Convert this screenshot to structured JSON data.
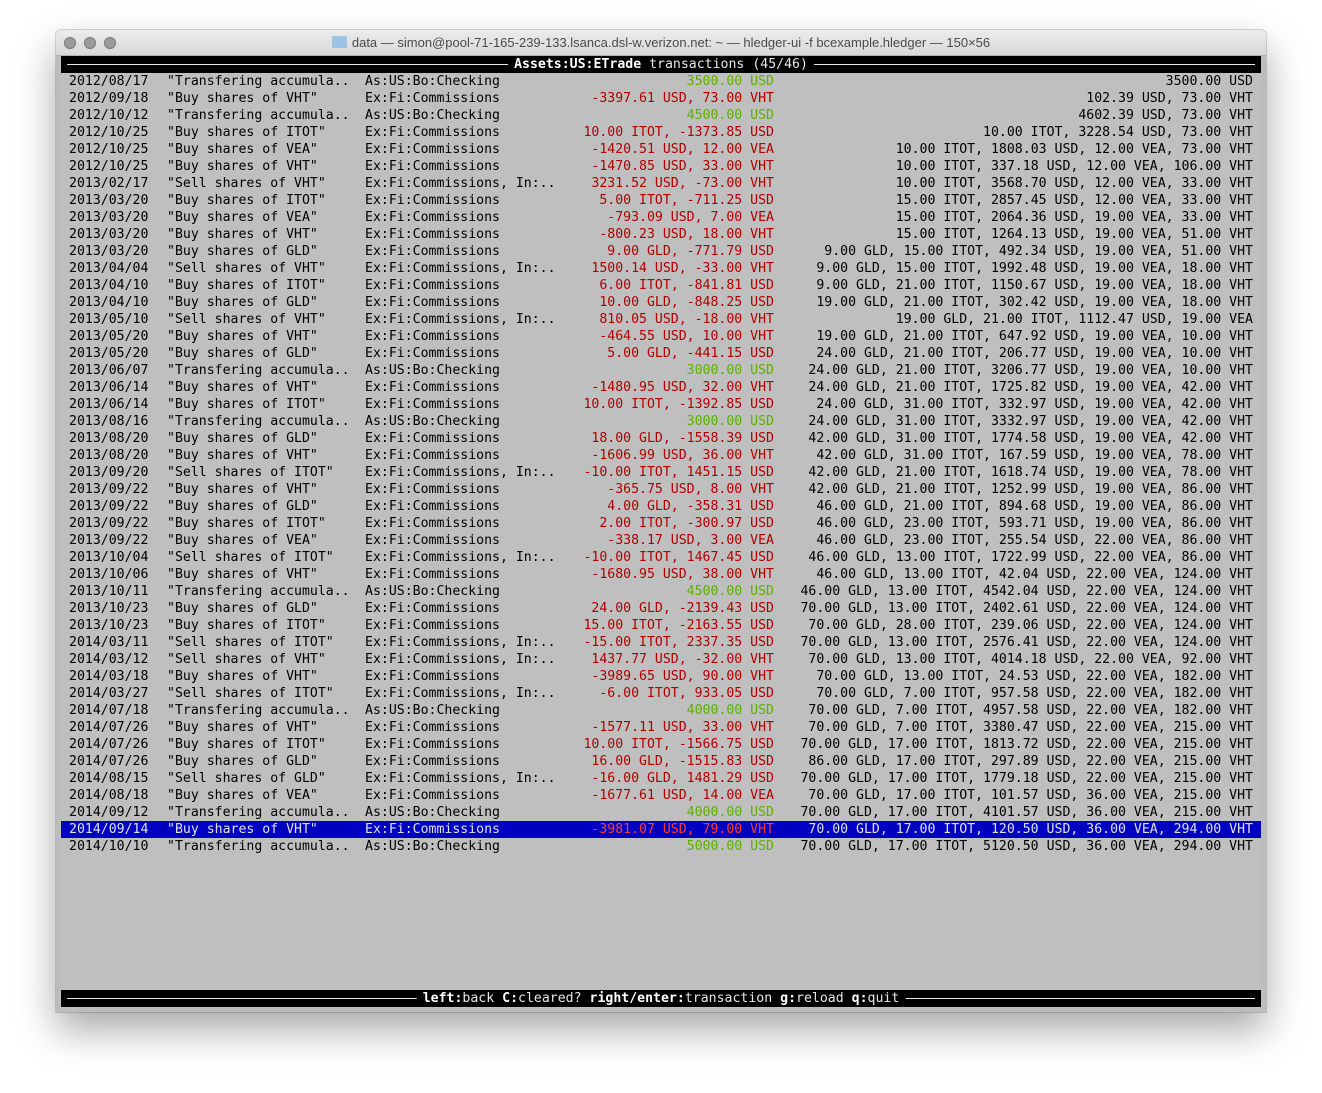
{
  "window": {
    "title": "data — simon@pool-71-165-239-133.lsanca.dsl-w.verizon.net: ~ — hledger-ui -f bcexample.hledger — 150×56",
    "folder_icon": "folder-icon"
  },
  "header": {
    "account": "Assets:US:ETrade",
    "label": "transactions (45/46)"
  },
  "colors": {
    "positive": "#5fb000",
    "negative": "#b00000",
    "selected_bg": "#0000c0",
    "background": "#bfbfbf"
  },
  "selected_index": 44,
  "rows": [
    {
      "date": "2012/08/17",
      "desc": "\"Transfering accumula..",
      "account": "As:US:Bo:Checking",
      "change": "3500.00 USD",
      "balance": "3500.00 USD"
    },
    {
      "date": "2012/09/18",
      "desc": "\"Buy shares of VHT\"",
      "account": "Ex:Fi:Commissions",
      "change": "-3397.61 USD, 73.00 VHT",
      "balance": "102.39 USD, 73.00 VHT"
    },
    {
      "date": "2012/10/12",
      "desc": "\"Transfering accumula..",
      "account": "As:US:Bo:Checking",
      "change": "4500.00 USD",
      "balance": "4602.39 USD, 73.00 VHT"
    },
    {
      "date": "2012/10/25",
      "desc": "\"Buy shares of ITOT\"",
      "account": "Ex:Fi:Commissions",
      "change": "10.00 ITOT, -1373.85 USD",
      "balance": "10.00 ITOT, 3228.54 USD, 73.00 VHT"
    },
    {
      "date": "2012/10/25",
      "desc": "\"Buy shares of VEA\"",
      "account": "Ex:Fi:Commissions",
      "change": "-1420.51 USD, 12.00 VEA",
      "balance": "10.00 ITOT, 1808.03 USD, 12.00 VEA, 73.00 VHT"
    },
    {
      "date": "2012/10/25",
      "desc": "\"Buy shares of VHT\"",
      "account": "Ex:Fi:Commissions",
      "change": "-1470.85 USD, 33.00 VHT",
      "balance": "10.00 ITOT, 337.18 USD, 12.00 VEA, 106.00 VHT"
    },
    {
      "date": "2013/02/17",
      "desc": "\"Sell shares of VHT\"",
      "account": "Ex:Fi:Commissions, In:..",
      "change": "3231.52 USD, -73.00 VHT",
      "balance": "10.00 ITOT, 3568.70 USD, 12.00 VEA, 33.00 VHT"
    },
    {
      "date": "2013/03/20",
      "desc": "\"Buy shares of ITOT\"",
      "account": "Ex:Fi:Commissions",
      "change": "5.00 ITOT, -711.25 USD",
      "balance": "15.00 ITOT, 2857.45 USD, 12.00 VEA, 33.00 VHT"
    },
    {
      "date": "2013/03/20",
      "desc": "\"Buy shares of VEA\"",
      "account": "Ex:Fi:Commissions",
      "change": "-793.09 USD, 7.00 VEA",
      "balance": "15.00 ITOT, 2064.36 USD, 19.00 VEA, 33.00 VHT"
    },
    {
      "date": "2013/03/20",
      "desc": "\"Buy shares of VHT\"",
      "account": "Ex:Fi:Commissions",
      "change": "-800.23 USD, 18.00 VHT",
      "balance": "15.00 ITOT, 1264.13 USD, 19.00 VEA, 51.00 VHT"
    },
    {
      "date": "2013/03/20",
      "desc": "\"Buy shares of GLD\"",
      "account": "Ex:Fi:Commissions",
      "change": "9.00 GLD, -771.79 USD",
      "balance": "9.00 GLD, 15.00 ITOT, 492.34 USD, 19.00 VEA, 51.00 VHT"
    },
    {
      "date": "2013/04/04",
      "desc": "\"Sell shares of VHT\"",
      "account": "Ex:Fi:Commissions, In:..",
      "change": "1500.14 USD, -33.00 VHT",
      "balance": "9.00 GLD, 15.00 ITOT, 1992.48 USD, 19.00 VEA, 18.00 VHT"
    },
    {
      "date": "2013/04/10",
      "desc": "\"Buy shares of ITOT\"",
      "account": "Ex:Fi:Commissions",
      "change": "6.00 ITOT, -841.81 USD",
      "balance": "9.00 GLD, 21.00 ITOT, 1150.67 USD, 19.00 VEA, 18.00 VHT"
    },
    {
      "date": "2013/04/10",
      "desc": "\"Buy shares of GLD\"",
      "account": "Ex:Fi:Commissions",
      "change": "10.00 GLD, -848.25 USD",
      "balance": "19.00 GLD, 21.00 ITOT, 302.42 USD, 19.00 VEA, 18.00 VHT"
    },
    {
      "date": "2013/05/10",
      "desc": "\"Sell shares of VHT\"",
      "account": "Ex:Fi:Commissions, In:..",
      "change": "810.05 USD, -18.00 VHT",
      "balance": "19.00 GLD, 21.00 ITOT, 1112.47 USD, 19.00 VEA"
    },
    {
      "date": "2013/05/20",
      "desc": "\"Buy shares of VHT\"",
      "account": "Ex:Fi:Commissions",
      "change": "-464.55 USD, 10.00 VHT",
      "balance": "19.00 GLD, 21.00 ITOT, 647.92 USD, 19.00 VEA, 10.00 VHT"
    },
    {
      "date": "2013/05/20",
      "desc": "\"Buy shares of GLD\"",
      "account": "Ex:Fi:Commissions",
      "change": "5.00 GLD, -441.15 USD",
      "balance": "24.00 GLD, 21.00 ITOT, 206.77 USD, 19.00 VEA, 10.00 VHT"
    },
    {
      "date": "2013/06/07",
      "desc": "\"Transfering accumula..",
      "account": "As:US:Bo:Checking",
      "change": "3000.00 USD",
      "balance": "24.00 GLD, 21.00 ITOT, 3206.77 USD, 19.00 VEA, 10.00 VHT"
    },
    {
      "date": "2013/06/14",
      "desc": "\"Buy shares of VHT\"",
      "account": "Ex:Fi:Commissions",
      "change": "-1480.95 USD, 32.00 VHT",
      "balance": "24.00 GLD, 21.00 ITOT, 1725.82 USD, 19.00 VEA, 42.00 VHT"
    },
    {
      "date": "2013/06/14",
      "desc": "\"Buy shares of ITOT\"",
      "account": "Ex:Fi:Commissions",
      "change": "10.00 ITOT, -1392.85 USD",
      "balance": "24.00 GLD, 31.00 ITOT, 332.97 USD, 19.00 VEA, 42.00 VHT"
    },
    {
      "date": "2013/08/16",
      "desc": "\"Transfering accumula..",
      "account": "As:US:Bo:Checking",
      "change": "3000.00 USD",
      "balance": "24.00 GLD, 31.00 ITOT, 3332.97 USD, 19.00 VEA, 42.00 VHT"
    },
    {
      "date": "2013/08/20",
      "desc": "\"Buy shares of GLD\"",
      "account": "Ex:Fi:Commissions",
      "change": "18.00 GLD, -1558.39 USD",
      "balance": "42.00 GLD, 31.00 ITOT, 1774.58 USD, 19.00 VEA, 42.00 VHT"
    },
    {
      "date": "2013/08/20",
      "desc": "\"Buy shares of VHT\"",
      "account": "Ex:Fi:Commissions",
      "change": "-1606.99 USD, 36.00 VHT",
      "balance": "42.00 GLD, 31.00 ITOT, 167.59 USD, 19.00 VEA, 78.00 VHT"
    },
    {
      "date": "2013/09/20",
      "desc": "\"Sell shares of ITOT\"",
      "account": "Ex:Fi:Commissions, In:..",
      "change": "-10.00 ITOT, 1451.15 USD",
      "balance": "42.00 GLD, 21.00 ITOT, 1618.74 USD, 19.00 VEA, 78.00 VHT"
    },
    {
      "date": "2013/09/22",
      "desc": "\"Buy shares of VHT\"",
      "account": "Ex:Fi:Commissions",
      "change": "-365.75 USD, 8.00 VHT",
      "balance": "42.00 GLD, 21.00 ITOT, 1252.99 USD, 19.00 VEA, 86.00 VHT"
    },
    {
      "date": "2013/09/22",
      "desc": "\"Buy shares of GLD\"",
      "account": "Ex:Fi:Commissions",
      "change": "4.00 GLD, -358.31 USD",
      "balance": "46.00 GLD, 21.00 ITOT, 894.68 USD, 19.00 VEA, 86.00 VHT"
    },
    {
      "date": "2013/09/22",
      "desc": "\"Buy shares of ITOT\"",
      "account": "Ex:Fi:Commissions",
      "change": "2.00 ITOT, -300.97 USD",
      "balance": "46.00 GLD, 23.00 ITOT, 593.71 USD, 19.00 VEA, 86.00 VHT"
    },
    {
      "date": "2013/09/22",
      "desc": "\"Buy shares of VEA\"",
      "account": "Ex:Fi:Commissions",
      "change": "-338.17 USD, 3.00 VEA",
      "balance": "46.00 GLD, 23.00 ITOT, 255.54 USD, 22.00 VEA, 86.00 VHT"
    },
    {
      "date": "2013/10/04",
      "desc": "\"Sell shares of ITOT\"",
      "account": "Ex:Fi:Commissions, In:..",
      "change": "-10.00 ITOT, 1467.45 USD",
      "balance": "46.00 GLD, 13.00 ITOT, 1722.99 USD, 22.00 VEA, 86.00 VHT"
    },
    {
      "date": "2013/10/06",
      "desc": "\"Buy shares of VHT\"",
      "account": "Ex:Fi:Commissions",
      "change": "-1680.95 USD, 38.00 VHT",
      "balance": "46.00 GLD, 13.00 ITOT, 42.04 USD, 22.00 VEA, 124.00 VHT"
    },
    {
      "date": "2013/10/11",
      "desc": "\"Transfering accumula..",
      "account": "As:US:Bo:Checking",
      "change": "4500.00 USD",
      "balance": "46.00 GLD, 13.00 ITOT, 4542.04 USD, 22.00 VEA, 124.00 VHT"
    },
    {
      "date": "2013/10/23",
      "desc": "\"Buy shares of GLD\"",
      "account": "Ex:Fi:Commissions",
      "change": "24.00 GLD, -2139.43 USD",
      "balance": "70.00 GLD, 13.00 ITOT, 2402.61 USD, 22.00 VEA, 124.00 VHT"
    },
    {
      "date": "2013/10/23",
      "desc": "\"Buy shares of ITOT\"",
      "account": "Ex:Fi:Commissions",
      "change": "15.00 ITOT, -2163.55 USD",
      "balance": "70.00 GLD, 28.00 ITOT, 239.06 USD, 22.00 VEA, 124.00 VHT"
    },
    {
      "date": "2014/03/11",
      "desc": "\"Sell shares of ITOT\"",
      "account": "Ex:Fi:Commissions, In:..",
      "change": "-15.00 ITOT, 2337.35 USD",
      "balance": "70.00 GLD, 13.00 ITOT, 2576.41 USD, 22.00 VEA, 124.00 VHT"
    },
    {
      "date": "2014/03/12",
      "desc": "\"Sell shares of VHT\"",
      "account": "Ex:Fi:Commissions, In:..",
      "change": "1437.77 USD, -32.00 VHT",
      "balance": "70.00 GLD, 13.00 ITOT, 4014.18 USD, 22.00 VEA, 92.00 VHT"
    },
    {
      "date": "2014/03/18",
      "desc": "\"Buy shares of VHT\"",
      "account": "Ex:Fi:Commissions",
      "change": "-3989.65 USD, 90.00 VHT",
      "balance": "70.00 GLD, 13.00 ITOT, 24.53 USD, 22.00 VEA, 182.00 VHT"
    },
    {
      "date": "2014/03/27",
      "desc": "\"Sell shares of ITOT\"",
      "account": "Ex:Fi:Commissions, In:..",
      "change": "-6.00 ITOT, 933.05 USD",
      "balance": "70.00 GLD, 7.00 ITOT, 957.58 USD, 22.00 VEA, 182.00 VHT"
    },
    {
      "date": "2014/07/18",
      "desc": "\"Transfering accumula..",
      "account": "As:US:Bo:Checking",
      "change": "4000.00 USD",
      "balance": "70.00 GLD, 7.00 ITOT, 4957.58 USD, 22.00 VEA, 182.00 VHT"
    },
    {
      "date": "2014/07/26",
      "desc": "\"Buy shares of VHT\"",
      "account": "Ex:Fi:Commissions",
      "change": "-1577.11 USD, 33.00 VHT",
      "balance": "70.00 GLD, 7.00 ITOT, 3380.47 USD, 22.00 VEA, 215.00 VHT"
    },
    {
      "date": "2014/07/26",
      "desc": "\"Buy shares of ITOT\"",
      "account": "Ex:Fi:Commissions",
      "change": "10.00 ITOT, -1566.75 USD",
      "balance": "70.00 GLD, 17.00 ITOT, 1813.72 USD, 22.00 VEA, 215.00 VHT"
    },
    {
      "date": "2014/07/26",
      "desc": "\"Buy shares of GLD\"",
      "account": "Ex:Fi:Commissions",
      "change": "16.00 GLD, -1515.83 USD",
      "balance": "86.00 GLD, 17.00 ITOT, 297.89 USD, 22.00 VEA, 215.00 VHT"
    },
    {
      "date": "2014/08/15",
      "desc": "\"Sell shares of GLD\"",
      "account": "Ex:Fi:Commissions, In:..",
      "change": "-16.00 GLD, 1481.29 USD",
      "balance": "70.00 GLD, 17.00 ITOT, 1779.18 USD, 22.00 VEA, 215.00 VHT"
    },
    {
      "date": "2014/08/18",
      "desc": "\"Buy shares of VEA\"",
      "account": "Ex:Fi:Commissions",
      "change": "-1677.61 USD, 14.00 VEA",
      "balance": "70.00 GLD, 17.00 ITOT, 101.57 USD, 36.00 VEA, 215.00 VHT"
    },
    {
      "date": "2014/09/12",
      "desc": "\"Transfering accumula..",
      "account": "As:US:Bo:Checking",
      "change": "4000.00 USD",
      "balance": "70.00 GLD, 17.00 ITOT, 4101.57 USD, 36.00 VEA, 215.00 VHT"
    },
    {
      "date": "2014/09/14",
      "desc": "\"Buy shares of VHT\"",
      "account": "Ex:Fi:Commissions",
      "change": "-3981.07 USD, 79.00 VHT",
      "balance": "70.00 GLD, 17.00 ITOT, 120.50 USD, 36.00 VEA, 294.00 VHT"
    },
    {
      "date": "2014/10/10",
      "desc": "\"Transfering accumula..",
      "account": "As:US:Bo:Checking",
      "change": "5000.00 USD",
      "balance": "70.00 GLD, 17.00 ITOT, 5120.50 USD, 36.00 VEA, 294.00 VHT"
    }
  ],
  "footer": {
    "keys": [
      {
        "key": "left",
        "action": "back"
      },
      {
        "key": "C",
        "action": "cleared?"
      },
      {
        "key": "right/enter",
        "action": "transaction"
      },
      {
        "key": "g",
        "action": "reload"
      },
      {
        "key": "q",
        "action": "quit"
      }
    ]
  }
}
